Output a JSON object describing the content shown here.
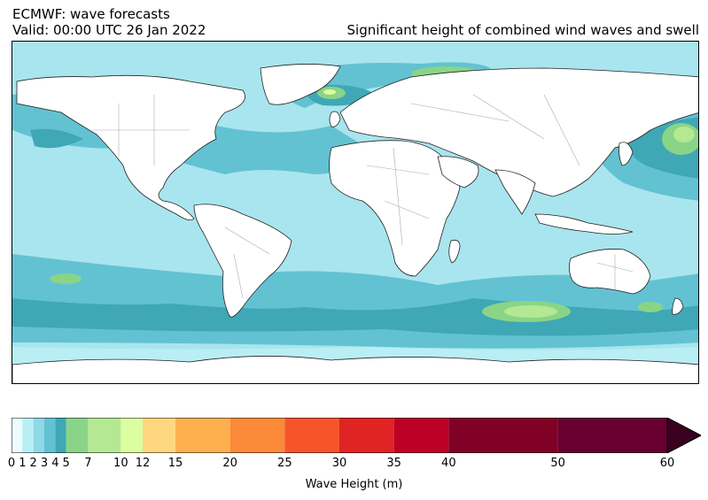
{
  "header": {
    "title_line1": "ECMWF: wave forecasts",
    "title_line2": "Valid: 00:00 UTC 26 Jan 2022",
    "title_right": "Significant height of combined wind waves and swell"
  },
  "colorbar": {
    "label": "Wave Height (m)",
    "ticks": [
      "0",
      "1",
      "2",
      "3",
      "4",
      "5",
      "7",
      "10",
      "12",
      "15",
      "20",
      "25",
      "30",
      "35",
      "40",
      "50",
      "60"
    ],
    "levels": [
      0,
      1,
      2,
      3,
      4,
      5,
      7,
      10,
      12,
      15,
      20,
      25,
      30,
      35,
      40,
      50,
      60
    ],
    "colors": [
      "#ecfbfd",
      "#b9eef5",
      "#8fd8e4",
      "#62c2d2",
      "#3fa7b6",
      "#8ad487",
      "#b4e892",
      "#dcfda0",
      "#ffd77e",
      "#feb04e",
      "#fb8a39",
      "#f6552b",
      "#e02323",
      "#bd0026",
      "#800026",
      "#67002f"
    ],
    "extend_color": "#3a0020"
  },
  "map": {
    "ocean_color": "#a9e5ee",
    "land_color": "#ffffff",
    "coast_color": "#222222",
    "border_color": "#aaaaaa"
  }
}
